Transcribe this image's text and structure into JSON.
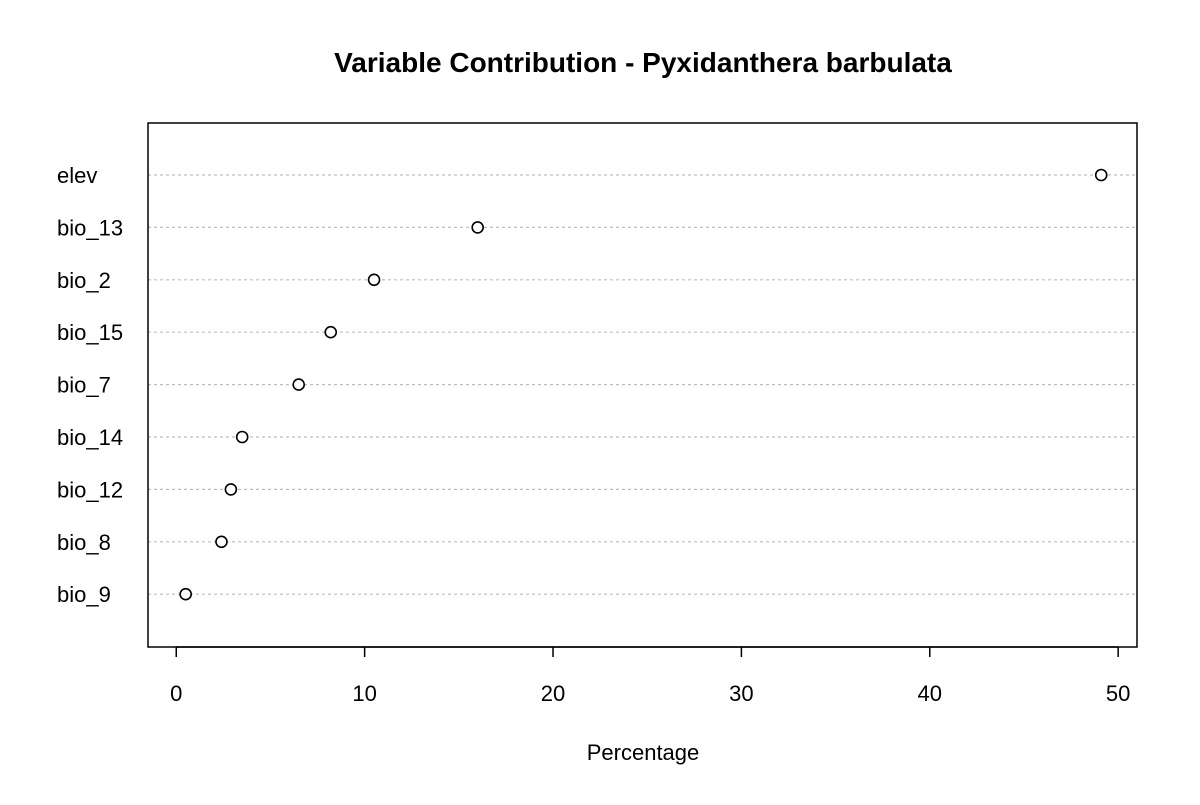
{
  "chart_data": {
    "type": "scatter",
    "title": "Variable Contribution - Pyxidanthera barbulata",
    "xlabel": "Percentage",
    "ylabel": "",
    "xlim": [
      -1.5,
      51
    ],
    "x_ticks": [
      0,
      10,
      20,
      30,
      40,
      50
    ],
    "grid": "horizontal dotted",
    "categories": [
      "elev",
      "bio_13",
      "bio_2",
      "bio_15",
      "bio_7",
      "bio_14",
      "bio_12",
      "bio_8",
      "bio_9"
    ],
    "values": [
      49.1,
      16.0,
      10.5,
      8.2,
      6.5,
      3.5,
      2.9,
      2.4,
      0.5
    ]
  }
}
